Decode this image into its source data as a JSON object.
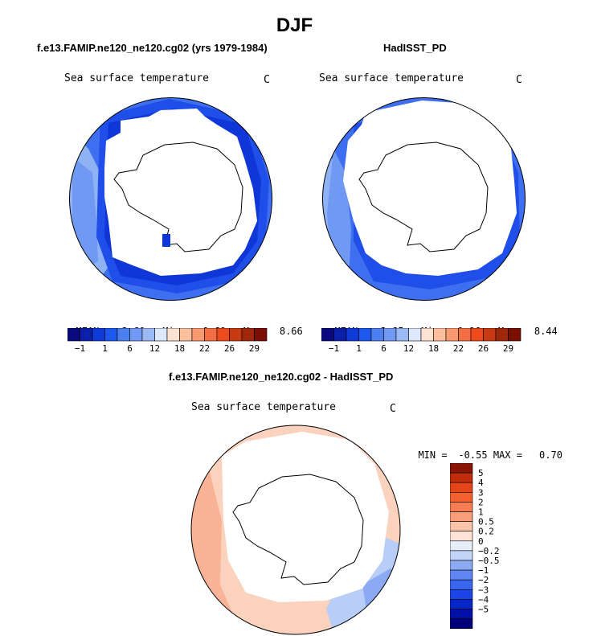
{
  "title": "DJF",
  "colors": {
    "abs_scale": [
      "#0a0a80",
      "#0c1fa8",
      "#0f3ad8",
      "#1e57ee",
      "#4b7ff2",
      "#6f99f2",
      "#9bbaf5",
      "#dce8fb",
      "#fde2d2",
      "#fbbf9d",
      "#f89a70",
      "#f46e45",
      "#ed4a1e",
      "#c73a14",
      "#9e270c",
      "#7a0f05"
    ],
    "diff_scale": [
      "#00007a",
      "#0010a8",
      "#0626c8",
      "#1b45e4",
      "#3a66ef",
      "#5f86f2",
      "#8ca9f4",
      "#c2d5f8",
      "#e6eef9",
      "#fde3d6",
      "#fbc4aa",
      "#f99e79",
      "#f77d55",
      "#f2602f",
      "#e5451b",
      "#c02c0c",
      "#8a1406"
    ],
    "land": "#ffffff",
    "outline": "#000000"
  },
  "panels": [
    {
      "id": "model",
      "title": "f.e13.FAMIP.ne120_ne120.cg02 (yrs 1979-1984)",
      "variable": "Sea surface temperature",
      "units": "C",
      "stats": {
        "mean_label": "MEAN=",
        "mean": "2.60",
        "min_label": "Min=",
        "min": "-0.69",
        "max_label": "Max=",
        "max": "8.66"
      },
      "colorbar_labels": [
        "-1",
        "1",
        "6",
        "12",
        "18",
        "22",
        "26",
        "29"
      ]
    },
    {
      "id": "obs",
      "title": "HadISST_PD",
      "variable": "Sea surface temperature",
      "units": "C",
      "stats": {
        "mean_label": "MEAN=",
        "mean": "3.85",
        "min_label": "Min=",
        "min": "0.96",
        "max_label": "Max=",
        "max": "8.44"
      },
      "colorbar_labels": [
        "-1",
        "1",
        "6",
        "12",
        "18",
        "22",
        "26",
        "29"
      ]
    },
    {
      "id": "diff",
      "title": "f.e13.FAMIP.ne120_ne120.cg02 - HadISST_PD",
      "variable": "Sea surface temperature",
      "units": "C",
      "stats": {
        "min_label": "MIN =",
        "min": "-0.55",
        "max_label": "MAX =",
        "max": "0.70"
      },
      "colorbar_labels": [
        "5",
        "4",
        "3",
        "2",
        "1",
        "0.5",
        "0.2",
        "0",
        "-0.2",
        "-0.5",
        "-1",
        "-2",
        "-3",
        "-4",
        "-5"
      ]
    }
  ]
}
